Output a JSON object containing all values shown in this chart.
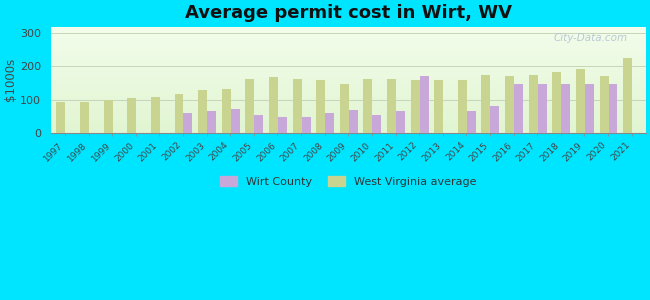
{
  "title": "Average permit cost in Wirt, WV",
  "ylabel": "$1000s",
  "years": [
    1997,
    1998,
    1999,
    2000,
    2001,
    2002,
    2003,
    2004,
    2005,
    2006,
    2007,
    2008,
    2009,
    2010,
    2011,
    2012,
    2013,
    2014,
    2015,
    2016,
    2017,
    2018,
    2019,
    2020,
    2021
  ],
  "wirt_county": [
    null,
    null,
    null,
    null,
    null,
    60,
    65,
    72,
    55,
    47,
    47,
    60,
    68,
    55,
    65,
    170,
    null,
    65,
    80,
    148,
    148,
    148,
    148,
    148,
    null
  ],
  "wv_average": [
    92,
    93,
    100,
    105,
    107,
    118,
    130,
    133,
    163,
    168,
    163,
    160,
    148,
    163,
    162,
    158,
    160,
    160,
    175,
    172,
    175,
    183,
    192,
    172,
    225
  ],
  "wirt_color": "#c8a8d8",
  "wv_color": "#c8d490",
  "outer_bg": "#00e5ff",
  "ylim": [
    0,
    320
  ],
  "yticks": [
    0,
    100,
    200,
    300
  ],
  "grid_color": "#c8d4b8",
  "title_fontsize": 13,
  "bar_width": 0.38,
  "legend_wirt": "Wirt County",
  "legend_wv": "West Virginia average",
  "watermark": "City-Data.com"
}
